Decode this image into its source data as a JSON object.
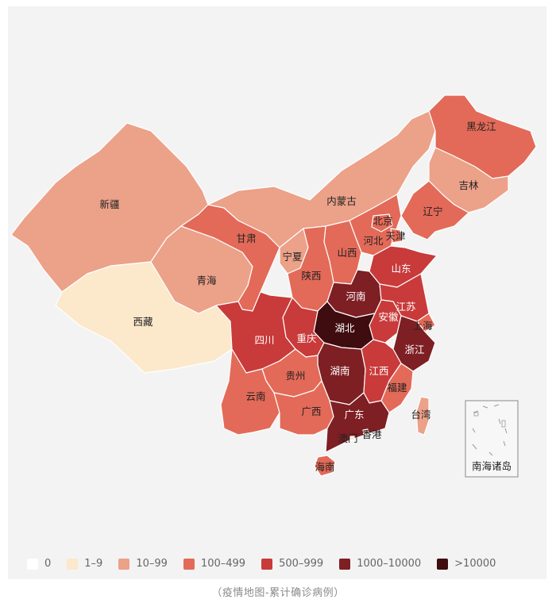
{
  "caption": "（疫情地图-累计确诊病例）",
  "legend": [
    {
      "label": "0",
      "color": "#ffffff"
    },
    {
      "label": "1–9",
      "color": "#fce8cb"
    },
    {
      "label": "10–99",
      "color": "#eca189"
    },
    {
      "label": "100–499",
      "color": "#e36a58"
    },
    {
      "label": "500–999",
      "color": "#c93a3a"
    },
    {
      "label": "1000–10000",
      "color": "#7e1f24"
    },
    {
      "label": ">10000",
      "color": "#3f0c10"
    }
  ],
  "regions": [
    {
      "name": "新疆",
      "level": "10–99"
    },
    {
      "name": "西藏",
      "level": "1–9"
    },
    {
      "name": "青海",
      "level": "10–99"
    },
    {
      "name": "甘肃",
      "level": "100–499"
    },
    {
      "name": "内蒙古",
      "level": "10–99"
    },
    {
      "name": "宁夏",
      "level": "10–99"
    },
    {
      "name": "陕西",
      "level": "100–499"
    },
    {
      "name": "山西",
      "level": "100–499"
    },
    {
      "name": "河北",
      "level": "100–499"
    },
    {
      "name": "北京",
      "level": "100–499"
    },
    {
      "name": "天津",
      "level": "100–499"
    },
    {
      "name": "辽宁",
      "level": "100–499"
    },
    {
      "name": "吉林",
      "level": "10–99"
    },
    {
      "name": "黑龙江",
      "level": "100–499"
    },
    {
      "name": "山东",
      "level": "500–999"
    },
    {
      "name": "河南",
      "level": "1000–10000"
    },
    {
      "name": "江苏",
      "level": "500–999"
    },
    {
      "name": "安徽",
      "level": "500–999"
    },
    {
      "name": "上海",
      "level": "100–499"
    },
    {
      "name": "湖北",
      "level": ">10000"
    },
    {
      "name": "浙江",
      "level": "1000–10000"
    },
    {
      "name": "四川",
      "level": "500–999"
    },
    {
      "name": "重庆",
      "level": "500–999"
    },
    {
      "name": "湖南",
      "level": "1000–10000"
    },
    {
      "name": "江西",
      "level": "500–999"
    },
    {
      "name": "贵州",
      "level": "100–499"
    },
    {
      "name": "云南",
      "level": "100–499"
    },
    {
      "name": "广西",
      "level": "100–499"
    },
    {
      "name": "福建",
      "level": "100–499"
    },
    {
      "name": "广东",
      "level": "1000–10000"
    },
    {
      "name": "香港",
      "level": "10–99"
    },
    {
      "name": "澳门",
      "level": "1–9"
    },
    {
      "name": "台湾",
      "level": "10–99"
    },
    {
      "name": "海南",
      "level": "100–499"
    }
  ],
  "inset_label": "南海诸岛"
}
